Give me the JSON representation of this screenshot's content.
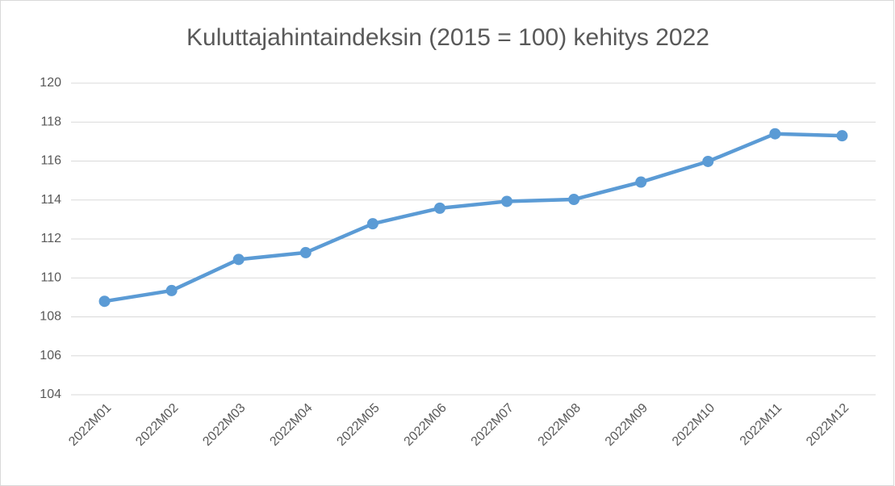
{
  "chart_data": {
    "type": "line",
    "title": "Kuluttajahintaindeksin (2015 = 100) kehitys 2022",
    "categories": [
      "2022M01",
      "2022M02",
      "2022M03",
      "2022M04",
      "2022M05",
      "2022M06",
      "2022M07",
      "2022M08",
      "2022M09",
      "2022M10",
      "2022M11",
      "2022M12"
    ],
    "series": [
      {
        "color": "#5b9bd5",
        "values": [
          108.8,
          109.35,
          110.95,
          111.3,
          112.78,
          113.58,
          113.93,
          114.03,
          114.92,
          115.98,
          117.4,
          117.3
        ]
      }
    ],
    "ylim": [
      104,
      120
    ],
    "yticks": [
      104,
      106,
      108,
      110,
      112,
      114,
      116,
      118,
      120
    ],
    "grid": true
  }
}
